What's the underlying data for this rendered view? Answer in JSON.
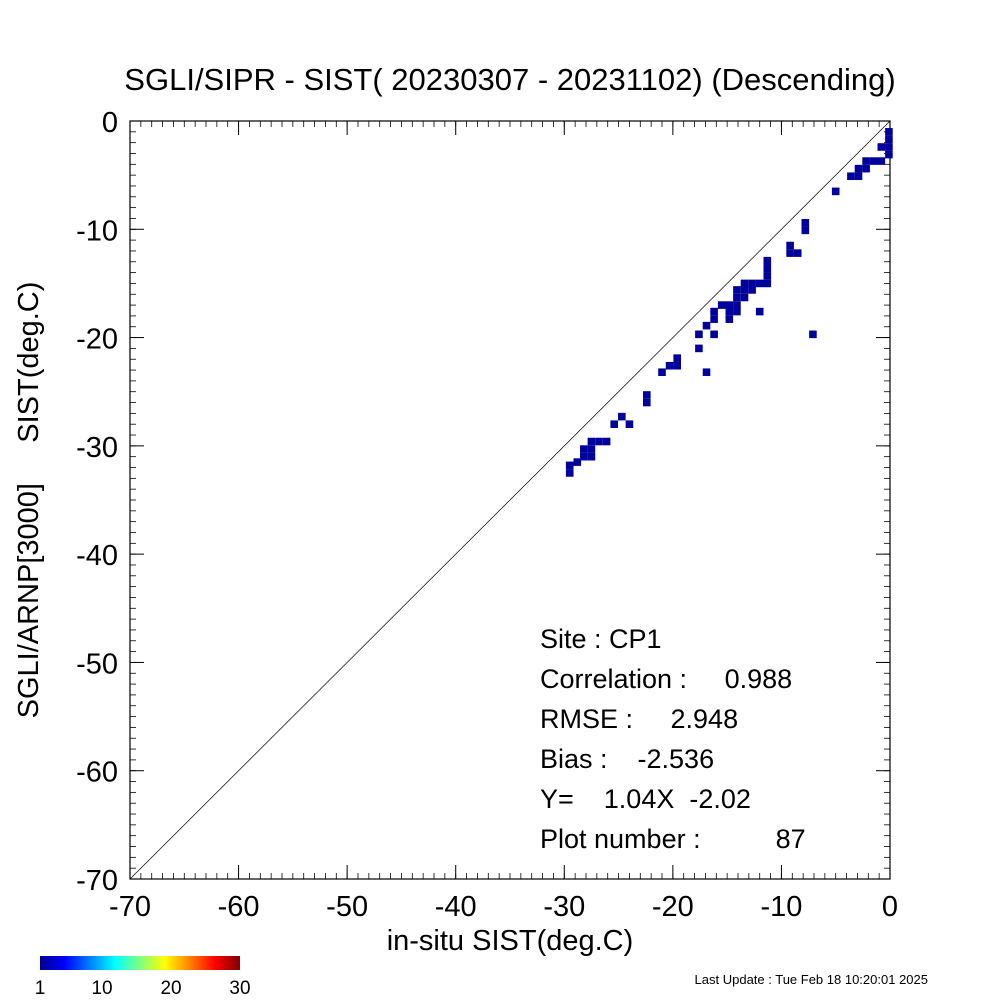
{
  "chart_data": {
    "type": "scatter",
    "title": "SGLI/SIPR - SIST( 20230307 - 20231102) (Descending)",
    "xlabel": "in-situ SIST(deg.C)",
    "ylabel": "SGLI/ARNP[3000]     SIST(deg.C)",
    "xlim": [
      -70,
      0
    ],
    "ylim": [
      -70,
      0
    ],
    "x_ticks": [
      "-70",
      "-60",
      "-50",
      "-40",
      "-30",
      "-20",
      "-10",
      "0"
    ],
    "y_ticks": [
      "-70",
      "-60",
      "-50",
      "-40",
      "-30",
      "-20",
      "-10",
      "0"
    ],
    "grid": false,
    "one_to_one_line": true,
    "bin_size": 0.7,
    "point_color": "#00009c",
    "points": [
      [
        -29.5,
        -32.5
      ],
      [
        -29.5,
        -31.8
      ],
      [
        -28.8,
        -31.5
      ],
      [
        -28.2,
        -31.0
      ],
      [
        -28.2,
        -30.3
      ],
      [
        -27.5,
        -31.0
      ],
      [
        -27.5,
        -30.3
      ],
      [
        -27.5,
        -29.6
      ],
      [
        -26.8,
        -29.6
      ],
      [
        -26.1,
        -29.6
      ],
      [
        -25.4,
        -28.0
      ],
      [
        -24.7,
        -27.3
      ],
      [
        -24.0,
        -28.0
      ],
      [
        -22.4,
        -26.0
      ],
      [
        -22.4,
        -25.3
      ],
      [
        -21.0,
        -23.2
      ],
      [
        -20.3,
        -22.6
      ],
      [
        -19.6,
        -22.6
      ],
      [
        -19.6,
        -21.9
      ],
      [
        -17.6,
        -21.0
      ],
      [
        -17.6,
        -19.7
      ],
      [
        -16.9,
        -23.2
      ],
      [
        -16.9,
        -18.9
      ],
      [
        -16.2,
        -19.7
      ],
      [
        -16.2,
        -18.3
      ],
      [
        -16.2,
        -17.6
      ],
      [
        -15.5,
        -17.0
      ],
      [
        -14.8,
        -17.0
      ],
      [
        -14.8,
        -17.6
      ],
      [
        -14.8,
        -18.3
      ],
      [
        -14.1,
        -16.3
      ],
      [
        -14.1,
        -17.0
      ],
      [
        -14.1,
        -17.6
      ],
      [
        -14.1,
        -15.6
      ],
      [
        -13.4,
        -16.3
      ],
      [
        -13.4,
        -15.6
      ],
      [
        -13.4,
        -15.0
      ],
      [
        -12.7,
        -15.6
      ],
      [
        -12.7,
        -15.0
      ],
      [
        -12.0,
        -17.6
      ],
      [
        -12.0,
        -15.0
      ],
      [
        -11.3,
        -15.0
      ],
      [
        -11.3,
        -14.3
      ],
      [
        -11.3,
        -13.6
      ],
      [
        -11.3,
        -12.9
      ],
      [
        -9.2,
        -12.2
      ],
      [
        -9.2,
        -11.5
      ],
      [
        -8.5,
        -12.2
      ],
      [
        -7.8,
        -10.1
      ],
      [
        -7.8,
        -9.4
      ],
      [
        -7.1,
        -19.7
      ],
      [
        -5.0,
        -6.5
      ],
      [
        -3.6,
        -5.1
      ],
      [
        -2.9,
        -5.1
      ],
      [
        -2.9,
        -4.4
      ],
      [
        -2.2,
        -4.4
      ],
      [
        -2.2,
        -3.7
      ],
      [
        -1.5,
        -3.7
      ],
      [
        -0.8,
        -3.7
      ],
      [
        -0.8,
        -2.4
      ],
      [
        -0.1,
        -3.1
      ],
      [
        -0.1,
        -2.4
      ],
      [
        -0.1,
        -1.7
      ],
      [
        -0.1,
        -1.0
      ]
    ]
  },
  "stats": {
    "site": "Site : CP1",
    "correlation": "Correlation :     0.988",
    "rmse": "RMSE :     2.948",
    "bias": "Bias :    -2.536",
    "regression": "Y=    1.04X  -2.02",
    "plot_number": "Plot number :          87"
  },
  "colorbar": {
    "min_label": "1",
    "labels": [
      "1",
      "10",
      "20",
      "30"
    ],
    "values": [
      1,
      10,
      20,
      30
    ],
    "range": [
      1,
      30
    ],
    "colors": [
      "#00008f",
      "#0000ff",
      "#0080ff",
      "#00ffff",
      "#80ff80",
      "#ffff00",
      "#ff8000",
      "#ff0000",
      "#800000"
    ]
  },
  "last_update": "Last Update : Tue Feb 18 10:20:01 2025"
}
